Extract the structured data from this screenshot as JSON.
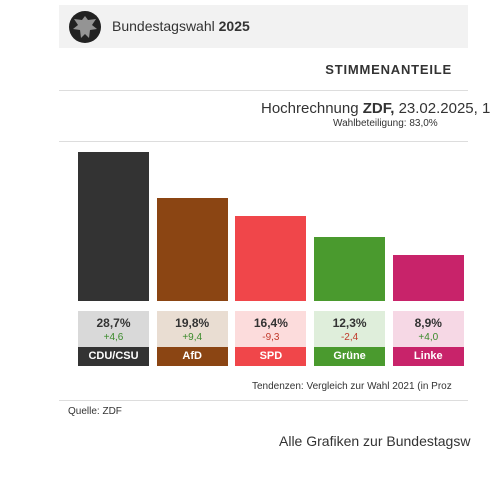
{
  "header": {
    "title": "Bundestagswahl",
    "year": "2025"
  },
  "section": "STIMMENANTEILE",
  "subtitle": {
    "prefix": "Hochrechnung ",
    "source": "ZDF,",
    "rest": " 23.02.2025, 1"
  },
  "turnout": "Wahlbeteiligung: 83,0%",
  "chart_data": {
    "type": "bar",
    "categories": [
      "CDU/CSU",
      "AfD",
      "SPD",
      "Grüne",
      "Linke"
    ],
    "values": [
      28.7,
      19.8,
      16.4,
      12.3,
      8.9
    ],
    "value_labels": [
      "28,7%",
      "19,8%",
      "16,4%",
      "12,3%",
      "8,9%"
    ],
    "changes": [
      4.6,
      9.4,
      -9.3,
      -2.4,
      4.0
    ],
    "change_labels": [
      "+4,6",
      "+9,4",
      "-9,3",
      "-2,4",
      "+4,0"
    ],
    "colors": [
      "#333333",
      "#8b4513",
      "#f0464a",
      "#4a9a2e",
      "#c8236a"
    ],
    "light_colors": [
      "#d9d9d9",
      "#e9ddd2",
      "#fcdcdc",
      "#dfeedb",
      "#f6d8e5"
    ],
    "positive_color": "#3a8a2a",
    "negative_color": "#c0392b"
  },
  "note": "Tendenzen: Vergleich zur Wahl 2021 (in Proz",
  "source": "Quelle: ZDF",
  "link": "Alle Grafiken zur Bundestagsw"
}
